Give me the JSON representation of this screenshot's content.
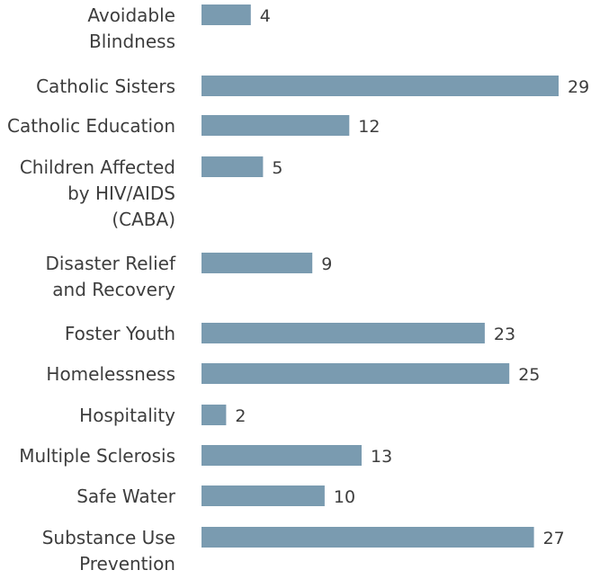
{
  "chart_data": {
    "type": "bar",
    "orientation": "horizontal",
    "categories": [
      "Avoidable Blindness",
      "Catholic Sisters",
      "Catholic Education",
      "Children Affected by HIV/AIDS (CABA)",
      "Disaster Relief and Recovery",
      "Foster Youth",
      "Homelessness",
      "Hospitality",
      "Multiple Sclerosis",
      "Safe Water",
      "Substance Use Prevention"
    ],
    "label_lines": [
      [
        "Avoidable",
        "Blindness"
      ],
      [
        "Catholic Sisters"
      ],
      [
        "Catholic Education"
      ],
      [
        "Children Affected",
        "by HIV/AIDS",
        "(CABA)"
      ],
      [
        "Disaster Relief",
        "and Recovery"
      ],
      [
        "Foster Youth"
      ],
      [
        "Homelessness"
      ],
      [
        "Hospitality"
      ],
      [
        "Multiple Sclerosis"
      ],
      [
        "Safe Water"
      ],
      [
        "Substance Use",
        "Prevention"
      ]
    ],
    "values": [
      4,
      29,
      12,
      5,
      9,
      23,
      25,
      2,
      13,
      10,
      27
    ],
    "xlim": [
      0,
      29
    ],
    "bar_color": "#7a9bb0",
    "text_color": "#3d3d3d",
    "title": "",
    "xlabel": "",
    "ylabel": "",
    "grid": false,
    "legend": "none"
  }
}
